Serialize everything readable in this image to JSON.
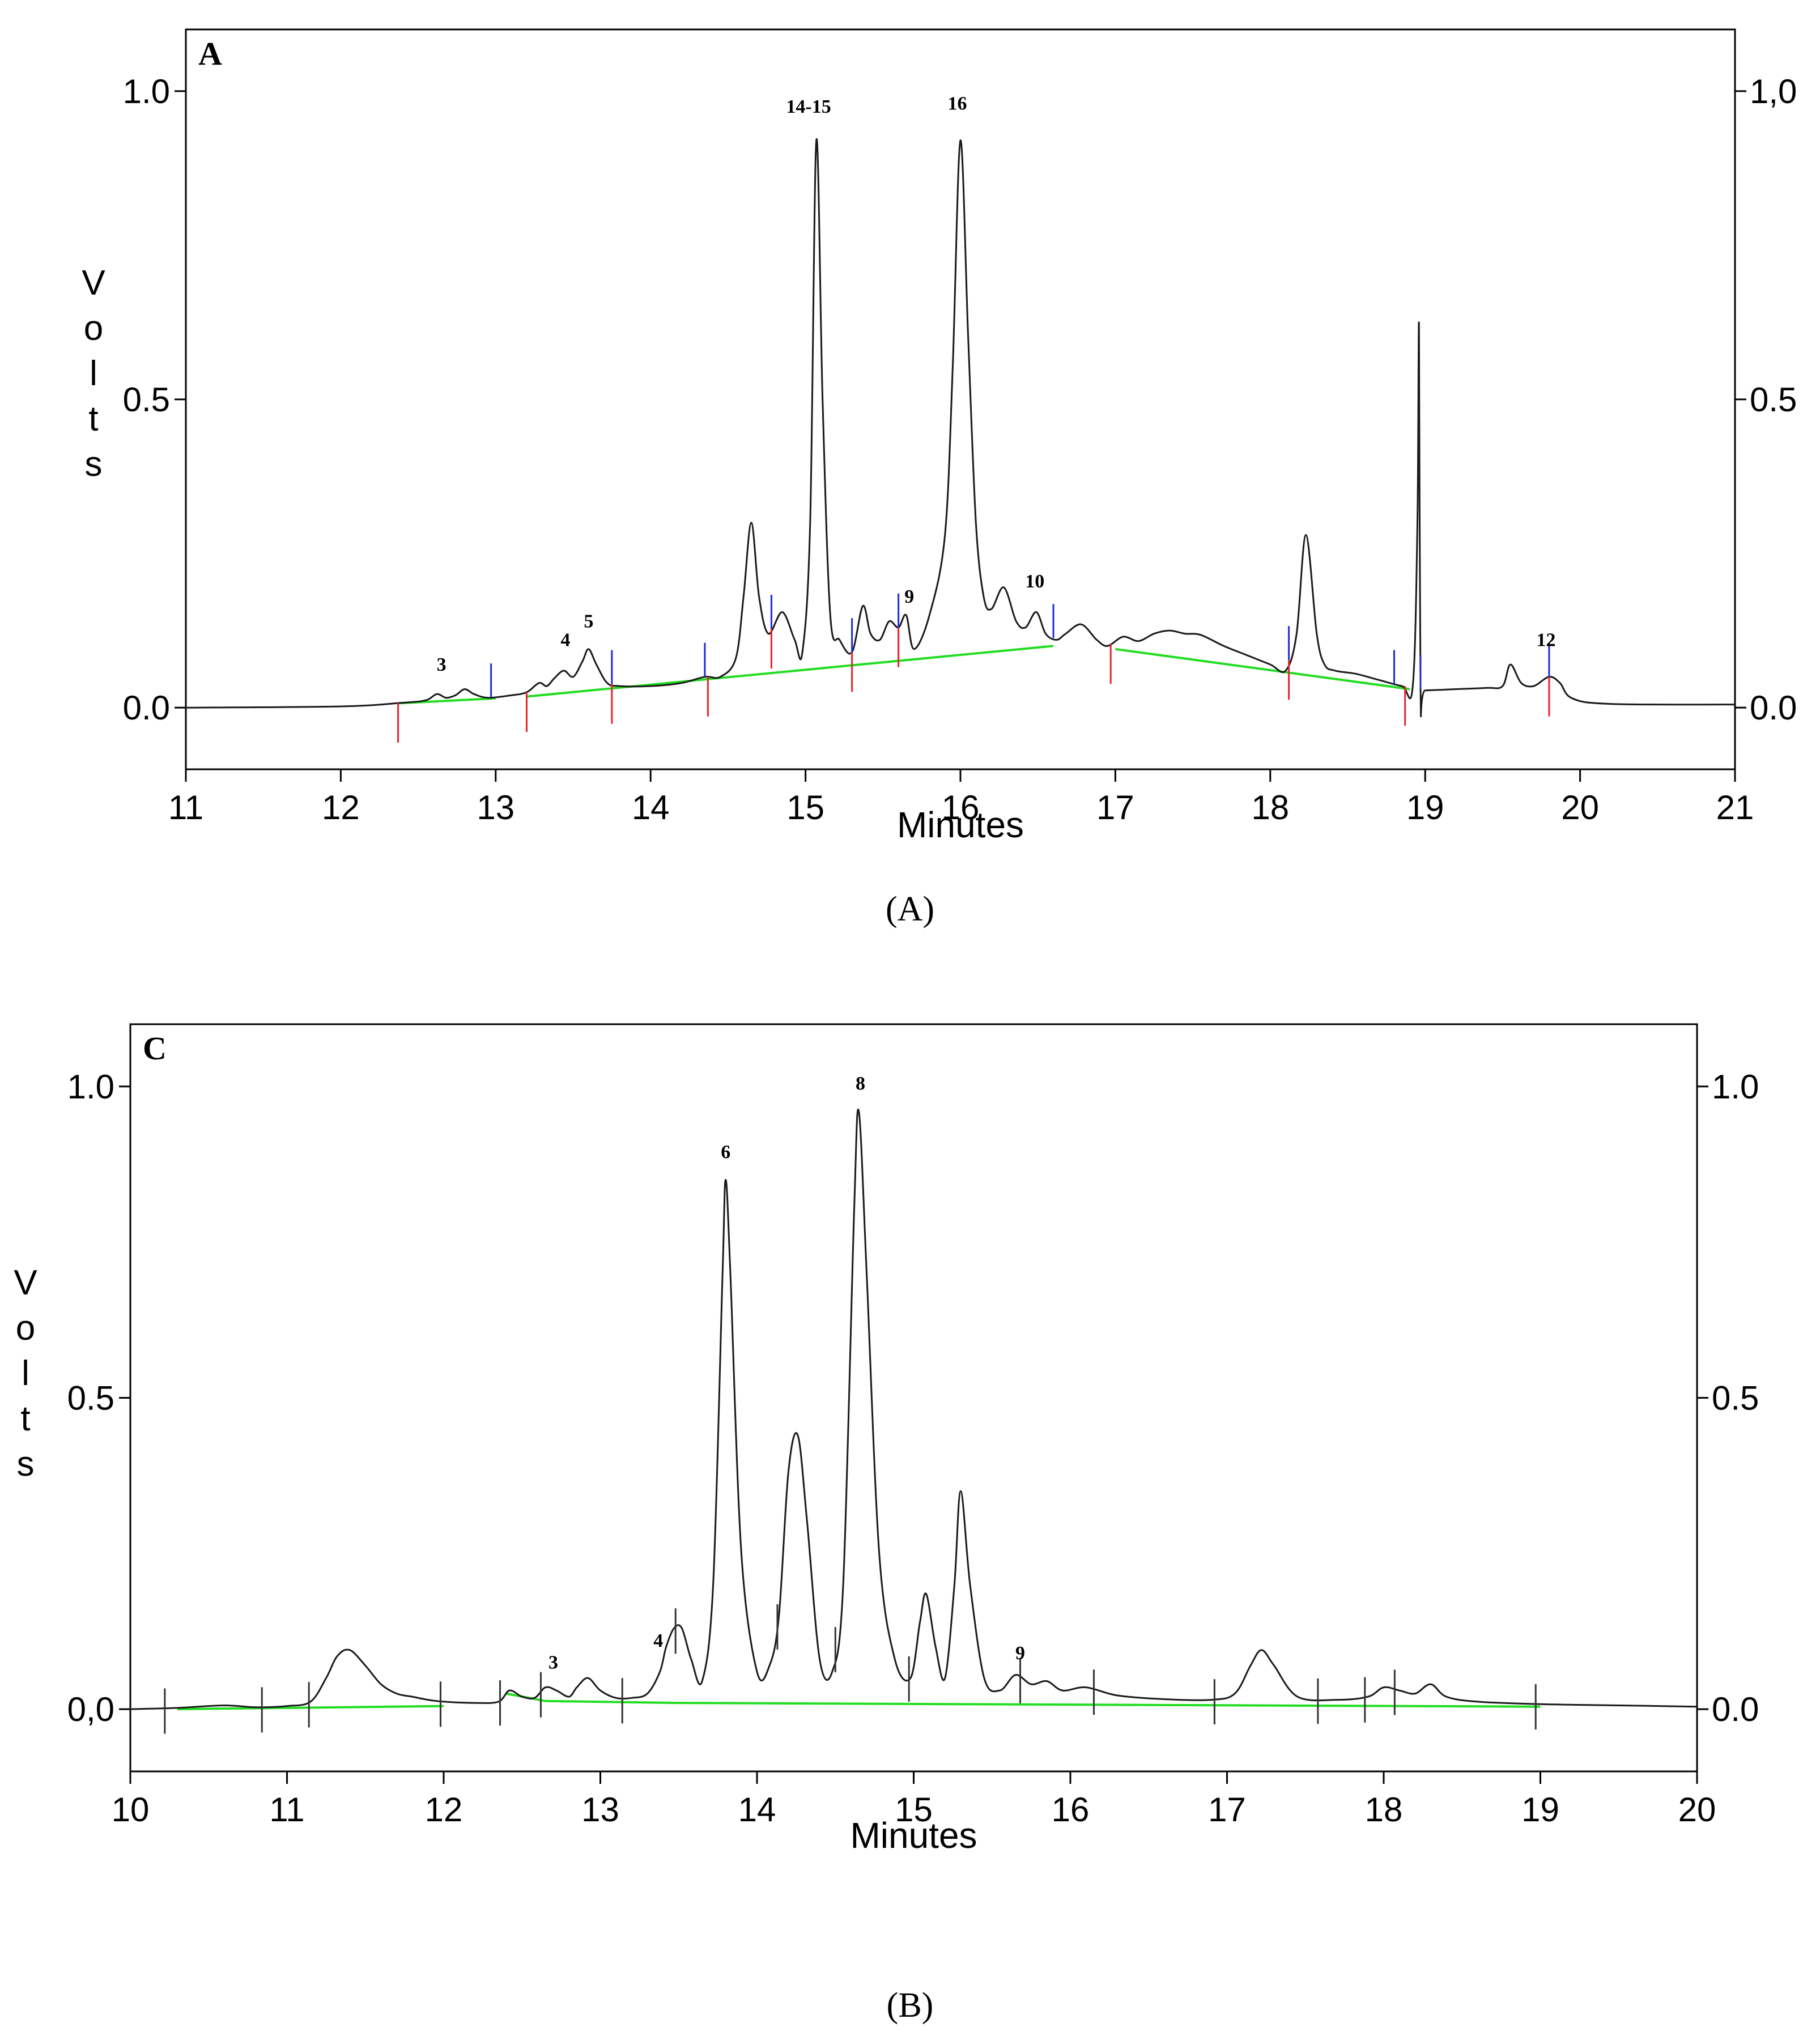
{
  "figure": {
    "caption_a": "(A)",
    "caption_b": "(B)"
  },
  "chart_data": [
    {
      "type": "line",
      "panel_letter": "A",
      "caption": "(A)",
      "xlabel": "Minutes",
      "ylabel": "Volts",
      "xlim": [
        11,
        21
      ],
      "ylim": [
        -0.1,
        1.1
      ],
      "grid": false,
      "xticks": [
        "11",
        "12",
        "13",
        "14",
        "15",
        "16",
        "17",
        "18",
        "19",
        "20",
        "21"
      ],
      "yticks": [
        "0.0",
        "0.5",
        "1.0"
      ],
      "yticks_right": [
        "0.0",
        "0.5",
        "1,0"
      ],
      "colors": {
        "trace": "#1a1a1a",
        "baseline": "#22dd22",
        "start_marker": "#e8232b",
        "end_marker": "#1f2bd6"
      },
      "series": [
        {
          "x": [
            11,
            12.0,
            12.4,
            12.55,
            12.62,
            12.68,
            12.74,
            12.8,
            12.86,
            12.95,
            13.1,
            13.2,
            13.28,
            13.33,
            13.38,
            13.44,
            13.5,
            13.56,
            13.6,
            13.65,
            13.72,
            13.8,
            14.0,
            14.2,
            14.35,
            14.45,
            14.55,
            14.6,
            14.65,
            14.7,
            14.76,
            14.85,
            14.93,
            14.98,
            15.03,
            15.07,
            15.11,
            15.16,
            15.22,
            15.3,
            15.37,
            15.42,
            15.48,
            15.54,
            15.6,
            15.65,
            15.7,
            15.8,
            15.9,
            15.95,
            16.0,
            16.05,
            16.1,
            16.15,
            16.2,
            16.28,
            16.36,
            16.42,
            16.49,
            16.55,
            16.62,
            16.68,
            16.78,
            16.88,
            16.95,
            17.05,
            17.15,
            17.25,
            17.35,
            17.45,
            17.55,
            17.7,
            17.85,
            18.0,
            18.1,
            18.17,
            18.23,
            18.3,
            18.35,
            18.42,
            18.55,
            18.7,
            18.85,
            18.92,
            18.95,
            18.96,
            18.97,
            19.0,
            19.2,
            19.4,
            19.5,
            19.55,
            19.62,
            19.7,
            19.8,
            19.87,
            19.95,
            20.2,
            21
          ],
          "y": [
            0.0,
            0.002,
            0.008,
            0.012,
            0.022,
            0.016,
            0.02,
            0.03,
            0.022,
            0.016,
            0.02,
            0.025,
            0.04,
            0.035,
            0.048,
            0.06,
            0.05,
            0.075,
            0.095,
            0.07,
            0.04,
            0.035,
            0.035,
            0.04,
            0.05,
            0.05,
            0.08,
            0.18,
            0.3,
            0.18,
            0.12,
            0.155,
            0.11,
            0.09,
            0.3,
            0.92,
            0.5,
            0.15,
            0.11,
            0.09,
            0.165,
            0.12,
            0.11,
            0.14,
            0.13,
            0.15,
            0.095,
            0.15,
            0.28,
            0.55,
            0.92,
            0.6,
            0.3,
            0.18,
            0.16,
            0.195,
            0.14,
            0.13,
            0.155,
            0.12,
            0.11,
            0.12,
            0.135,
            0.11,
            0.1,
            0.115,
            0.108,
            0.12,
            0.125,
            0.12,
            0.118,
            0.1,
            0.085,
            0.07,
            0.06,
            0.12,
            0.28,
            0.12,
            0.07,
            0.06,
            0.055,
            0.045,
            0.035,
            0.035,
            0.3,
            0.62,
            0.03,
            0.028,
            0.03,
            0.032,
            0.035,
            0.07,
            0.04,
            0.035,
            0.05,
            0.04,
            0.015,
            0.006,
            0.005
          ]
        }
      ],
      "baseline_segments": [
        [
          [
            12.37,
            0.007
          ],
          [
            13.0,
            0.015
          ]
        ],
        [
          [
            13.2,
            0.018
          ],
          [
            16.6,
            0.1
          ]
        ],
        [
          [
            17.0,
            0.095
          ],
          [
            18.9,
            0.03
          ]
        ]
      ],
      "start_markers": [
        12.37,
        13.2,
        13.75,
        14.37,
        14.78,
        15.3,
        15.6,
        16.97,
        18.12,
        18.87,
        19.8
      ],
      "end_markers": [
        12.97,
        13.75,
        14.35,
        14.78,
        15.3,
        15.6,
        16.6,
        18.12,
        18.8,
        18.97,
        19.8
      ],
      "peak_labels": [
        {
          "label": "3",
          "x": 12.65,
          "y": 0.06
        },
        {
          "label": "4",
          "x": 13.45,
          "y": 0.1
        },
        {
          "label": "5",
          "x": 13.6,
          "y": 0.13
        },
        {
          "label": "14-15",
          "x": 15.02,
          "y": 0.965
        },
        {
          "label": "9",
          "x": 15.67,
          "y": 0.17
        },
        {
          "label": "16",
          "x": 15.98,
          "y": 0.97
        },
        {
          "label": "10",
          "x": 16.48,
          "y": 0.195
        },
        {
          "label": "12",
          "x": 19.78,
          "y": 0.1
        }
      ]
    },
    {
      "type": "line",
      "panel_letter": "C",
      "caption": "(B)",
      "xlabel": "Minutes",
      "ylabel": "Volts",
      "xlim": [
        10,
        20
      ],
      "ylim": [
        -0.1,
        1.1
      ],
      "grid": false,
      "xticks": [
        "10",
        "11",
        "12",
        "13",
        "14",
        "15",
        "16",
        "17",
        "18",
        "19",
        "20"
      ],
      "yticks": [
        "0,0",
        "0.5",
        "1.0"
      ],
      "yticks_right": [
        "0.0",
        "0.5",
        "1.0"
      ],
      "colors": {
        "trace": "#1a1a1a",
        "baseline": "#22dd22",
        "tick_marker": "#333333"
      },
      "series": [
        {
          "x": [
            10,
            10.3,
            10.6,
            10.8,
            11.0,
            11.15,
            11.25,
            11.32,
            11.4,
            11.5,
            11.6,
            11.7,
            11.8,
            11.9,
            12.0,
            12.2,
            12.35,
            12.42,
            12.5,
            12.58,
            12.65,
            12.72,
            12.8,
            12.85,
            12.92,
            13.0,
            13.1,
            13.2,
            13.3,
            13.38,
            13.42,
            13.47,
            13.52,
            13.58,
            13.65,
            13.72,
            13.78,
            13.8,
            13.83,
            13.9,
            14.0,
            14.08,
            14.14,
            14.2,
            14.26,
            14.32,
            14.4,
            14.48,
            14.55,
            14.62,
            14.65,
            14.7,
            14.78,
            14.88,
            14.98,
            15.04,
            15.08,
            15.14,
            15.2,
            15.26,
            15.3,
            15.36,
            15.45,
            15.55,
            15.65,
            15.75,
            15.85,
            15.95,
            16.1,
            16.3,
            16.6,
            16.9,
            17.05,
            17.15,
            17.22,
            17.3,
            17.45,
            17.7,
            17.9,
            18.0,
            18.1,
            18.2,
            18.3,
            18.4,
            18.6,
            19.0,
            19.5,
            20.0
          ],
          "y": [
            0.0,
            0.002,
            0.006,
            0.003,
            0.005,
            0.012,
            0.05,
            0.085,
            0.095,
            0.07,
            0.04,
            0.025,
            0.02,
            0.015,
            0.012,
            0.01,
            0.012,
            0.03,
            0.02,
            0.018,
            0.035,
            0.03,
            0.02,
            0.035,
            0.05,
            0.03,
            0.018,
            0.018,
            0.025,
            0.06,
            0.1,
            0.13,
            0.13,
            0.08,
            0.045,
            0.2,
            0.7,
            0.85,
            0.7,
            0.25,
            0.06,
            0.07,
            0.15,
            0.38,
            0.44,
            0.3,
            0.08,
            0.06,
            0.2,
            0.8,
            0.96,
            0.7,
            0.25,
            0.08,
            0.05,
            0.14,
            0.185,
            0.1,
            0.05,
            0.2,
            0.35,
            0.2,
            0.05,
            0.03,
            0.055,
            0.04,
            0.045,
            0.03,
            0.035,
            0.022,
            0.016,
            0.015,
            0.025,
            0.07,
            0.095,
            0.07,
            0.02,
            0.015,
            0.02,
            0.035,
            0.03,
            0.025,
            0.04,
            0.02,
            0.012,
            0.008,
            0.006,
            0.004
          ]
        }
      ],
      "baseline_segments": [
        [
          [
            10.3,
            0.0
          ],
          [
            12.0,
            0.005
          ]
        ],
        [
          [
            12.4,
            0.025
          ],
          [
            12.65,
            0.013
          ],
          [
            13.5,
            0.01
          ],
          [
            19.0,
            0.004
          ]
        ]
      ],
      "tick_markers": [
        10.22,
        10.84,
        11.14,
        11.98,
        12.36,
        12.62,
        13.14,
        13.48,
        14.13,
        14.5,
        14.97,
        15.68,
        16.15,
        16.92,
        17.58,
        17.88,
        18.07,
        18.97
      ],
      "peak_labels": [
        {
          "label": "3",
          "x": 12.7,
          "y": 0.065
        },
        {
          "label": "4",
          "x": 13.37,
          "y": 0.1
        },
        {
          "label": "6",
          "x": 13.8,
          "y": 0.885
        },
        {
          "label": "8",
          "x": 14.66,
          "y": 0.995
        },
        {
          "label": "9",
          "x": 15.68,
          "y": 0.08
        }
      ]
    }
  ]
}
